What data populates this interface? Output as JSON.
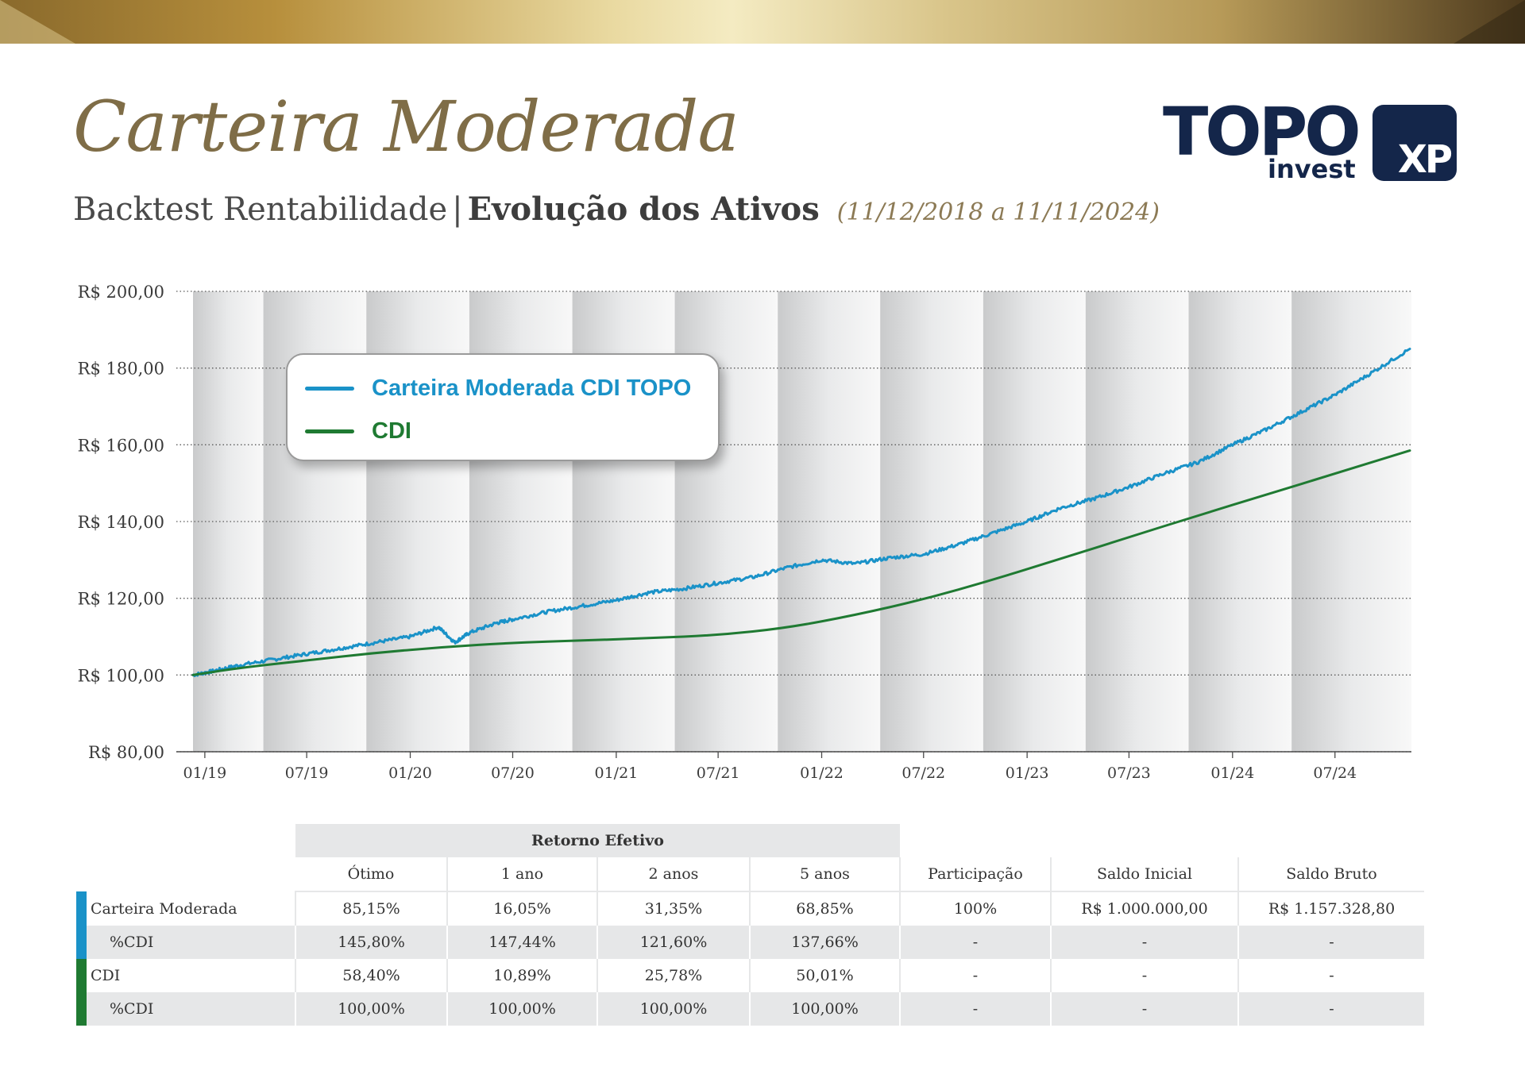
{
  "header": {
    "title": "Carteira Moderada",
    "subtitle_left": "Backtest Rentabilidade",
    "subtitle_sep": "|",
    "subtitle_bold": "Evolução dos Ativos",
    "period": "(11/12/2018 a 11/11/2024)",
    "logo_topo": "TOPO",
    "logo_topo_sub": "invest",
    "logo_xp": "XP"
  },
  "colors": {
    "gold": "#7f6d47",
    "navy": "#14264a",
    "series_blue": "#1a92c8",
    "series_green": "#1f7a32",
    "band": "#e6e7e8"
  },
  "chart_data": {
    "type": "line",
    "y_tick_labels": [
      "R$ 80,00",
      "R$ 100,00",
      "R$ 120,00",
      "R$ 140,00",
      "R$ 160,00",
      "R$ 180,00",
      "R$ 200,00"
    ],
    "y_ticks": [
      80,
      100,
      120,
      140,
      160,
      180,
      200
    ],
    "ylim": [
      80,
      200
    ],
    "x_tick_labels": [
      "01/19",
      "07/19",
      "01/20",
      "07/20",
      "01/21",
      "07/21",
      "01/22",
      "07/22",
      "01/23",
      "07/23",
      "01/24",
      "07/24"
    ],
    "x_ticks": [
      "2019-01",
      "2019-07",
      "2020-01",
      "2020-07",
      "2021-01",
      "2021-07",
      "2022-01",
      "2022-07",
      "2023-01",
      "2023-07",
      "2024-01",
      "2024-07"
    ],
    "xlim": [
      "2018-12-11",
      "2024-11-11"
    ],
    "x_tick_dates": [
      "2019-01-01",
      "2019-07-01",
      "2020-01-01",
      "2020-07-01",
      "2021-01-01",
      "2021-07-01",
      "2022-01-01",
      "2022-07-01",
      "2023-01-01",
      "2023-07-01",
      "2024-01-01",
      "2024-07-01"
    ],
    "legend_position": "top-left",
    "grid": "horizontal dotted",
    "series": [
      {
        "name": "Carteira Moderada CDI TOPO",
        "color": "#1a92c8",
        "x": [
          "2018-12-11",
          "2019-01-15",
          "2019-03-01",
          "2019-05-01",
          "2019-07-01",
          "2019-09-01",
          "2019-11-01",
          "2020-01-01",
          "2020-02-20",
          "2020-03-20",
          "2020-04-15",
          "2020-06-01",
          "2020-07-01",
          "2020-09-01",
          "2020-11-01",
          "2021-01-01",
          "2021-03-01",
          "2021-05-01",
          "2021-07-01",
          "2021-09-01",
          "2021-11-01",
          "2022-01-01",
          "2022-03-01",
          "2022-05-01",
          "2022-07-01",
          "2022-09-01",
          "2022-11-01",
          "2023-01-01",
          "2023-03-01",
          "2023-05-01",
          "2023-07-01",
          "2023-09-01",
          "2023-11-01",
          "2024-01-01",
          "2024-03-01",
          "2024-05-01",
          "2024-07-01",
          "2024-09-01",
          "2024-11-11"
        ],
        "values": [
          100,
          101,
          102.5,
          104,
          105.5,
          107,
          108.5,
          110,
          112.5,
          108.5,
          111,
          113.5,
          114.5,
          116.5,
          118,
          119.5,
          121.5,
          122.5,
          124,
          125.5,
          128,
          130,
          129,
          130.5,
          131.5,
          134,
          137,
          140,
          143.5,
          146,
          149,
          152.5,
          155.5,
          160,
          164,
          168.5,
          173,
          178.5,
          185
        ]
      },
      {
        "name": "CDI",
        "color": "#1f7a32",
        "x": [
          "2018-12-11",
          "2019-03-01",
          "2019-07-01",
          "2019-11-01",
          "2020-03-01",
          "2020-07-01",
          "2020-11-01",
          "2021-03-01",
          "2021-07-01",
          "2021-11-01",
          "2022-03-01",
          "2022-07-01",
          "2022-11-01",
          "2023-03-01",
          "2023-07-01",
          "2023-11-01",
          "2024-03-01",
          "2024-07-01",
          "2024-11-11"
        ],
        "values": [
          100,
          101.8,
          103.8,
          105.8,
          107.3,
          108.4,
          109,
          109.6,
          110.4,
          112.3,
          115.6,
          119.7,
          124.8,
          130.3,
          135.9,
          141.6,
          147,
          152.5,
          158.5
        ]
      }
    ]
  },
  "table": {
    "group_header": "Retorno Efetivo",
    "columns": [
      "Ótimo",
      "1 ano",
      "2 anos",
      "5 anos",
      "Participação",
      "Saldo Inicial",
      "Saldo Bruto"
    ],
    "rows": [
      {
        "label": "Carteira Moderada",
        "marker": "#1a92c8",
        "cells": [
          "85,15%",
          "16,05%",
          "31,35%",
          "68,85%",
          "100%",
          "R$ 1.000.000,00",
          "R$ 1.157.328,80"
        ]
      },
      {
        "label": "%CDI",
        "marker": "#1a92c8",
        "cells": [
          "145,80%",
          "147,44%",
          "121,60%",
          "137,66%",
          "-",
          "-",
          "-"
        ]
      },
      {
        "label": "CDI",
        "marker": "#1f7a32",
        "cells": [
          "58,40%",
          "10,89%",
          "25,78%",
          "50,01%",
          "-",
          "-",
          "-"
        ]
      },
      {
        "label": "%CDI",
        "marker": "#1f7a32",
        "cells": [
          "100,00%",
          "100,00%",
          "100,00%",
          "100,00%",
          "-",
          "-",
          "-"
        ]
      }
    ]
  }
}
